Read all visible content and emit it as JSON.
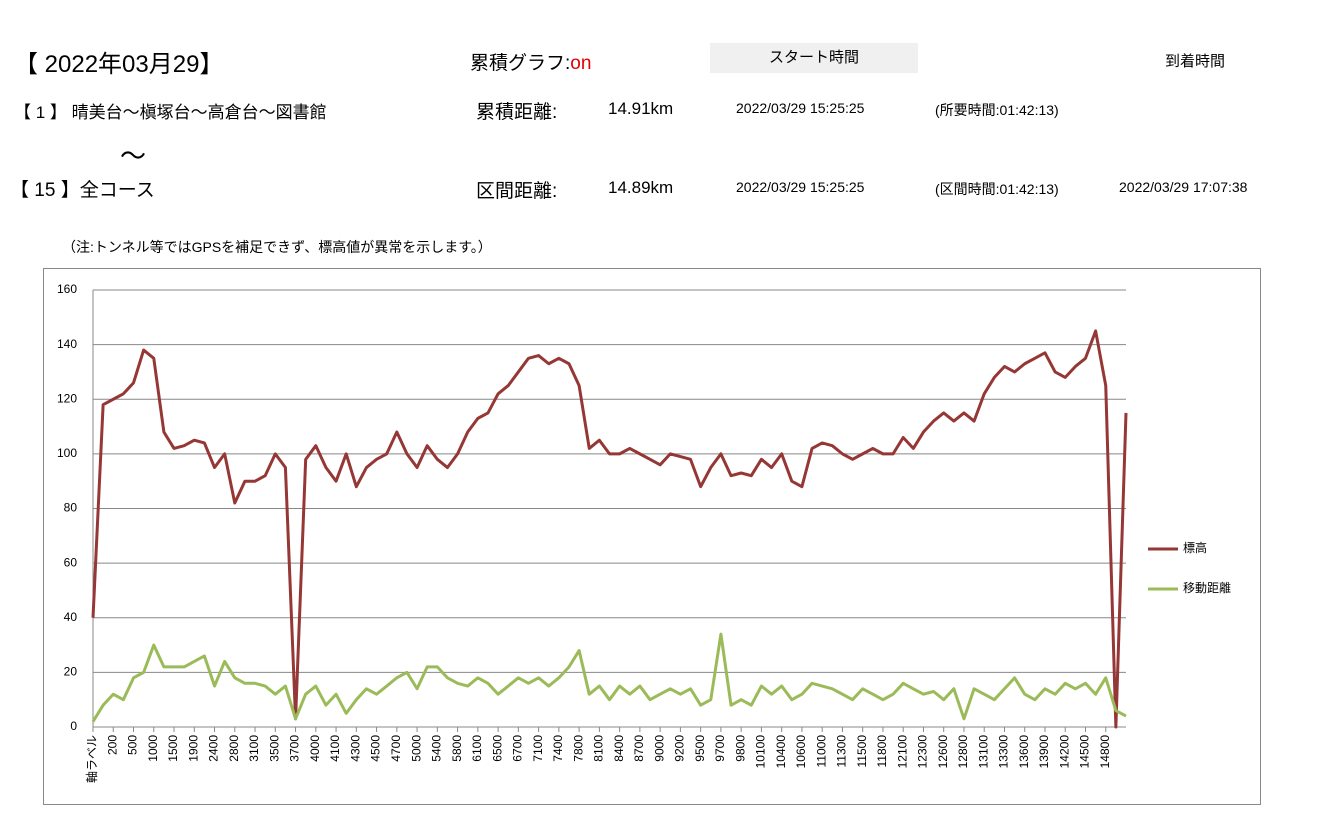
{
  "header": {
    "date": "【 2022年03月29】",
    "graph_label": "累積グラフ:",
    "graph_state": "on",
    "start_label": "スタート時間",
    "end_label": "到着時間"
  },
  "route": {
    "from": "【 1 】 晴美台～槇塚台～高倉台～図書館",
    "tilde": "～",
    "to": "【 15 】全コース"
  },
  "cumulative": {
    "label": "累積距離:",
    "distance": "14.91km",
    "start": "2022/03/29 15:25:25",
    "duration": "(所要時間:01:42:13)"
  },
  "section": {
    "label": "区間距離:",
    "distance": "14.89km",
    "start": "2022/03/29 15:25:25",
    "duration": "(区間時間:01:42:13)",
    "end": "2022/03/29 17:07:38"
  },
  "note": "（注:トンネル等ではGPSを補足できず、標高値が異常を示します。）",
  "chart_data": {
    "type": "line",
    "categories": [
      "軸ラベル",
      null,
      "200",
      null,
      "500",
      null,
      "1000",
      null,
      "1500",
      null,
      "1900",
      null,
      "2400",
      null,
      "2800",
      null,
      "3100",
      null,
      "3500",
      null,
      "3700",
      null,
      "4000",
      null,
      "4100",
      null,
      "4300",
      null,
      "4500",
      null,
      "4700",
      null,
      "5000",
      null,
      "5400",
      null,
      "5800",
      null,
      "6100",
      null,
      "6500",
      null,
      "6700",
      null,
      "7100",
      null,
      "7400",
      null,
      "7800",
      null,
      "8100",
      null,
      "8400",
      null,
      "8700",
      null,
      "9000",
      null,
      "9200",
      null,
      "9500",
      null,
      "9700",
      null,
      "9800",
      null,
      "10100",
      null,
      "10400",
      null,
      "10600",
      null,
      "11000",
      null,
      "11300",
      null,
      "11500",
      null,
      "11800",
      null,
      "12100",
      null,
      "12300",
      null,
      "12600",
      null,
      "12800",
      null,
      "13100",
      null,
      "13300",
      null,
      "13600",
      null,
      "13900",
      null,
      "14200",
      null,
      "14500",
      null,
      "14800",
      null,
      null
    ],
    "series": [
      {
        "name": "標高",
        "color": "#953735",
        "values": [
          40,
          118,
          120,
          122,
          126,
          138,
          135,
          108,
          102,
          103,
          105,
          104,
          95,
          100,
          82,
          90,
          90,
          92,
          100,
          95,
          3,
          98,
          103,
          95,
          90,
          100,
          88,
          95,
          98,
          100,
          108,
          100,
          95,
          103,
          98,
          95,
          100,
          108,
          113,
          115,
          122,
          125,
          130,
          135,
          136,
          133,
          135,
          133,
          125,
          102,
          105,
          100,
          100,
          102,
          100,
          98,
          96,
          100,
          99,
          98,
          88,
          95,
          100,
          92,
          93,
          92,
          98,
          95,
          100,
          90,
          88,
          102,
          104,
          103,
          100,
          98,
          100,
          102,
          100,
          100,
          106,
          102,
          108,
          112,
          115,
          112,
          115,
          112,
          122,
          128,
          132,
          130,
          133,
          135,
          137,
          130,
          128,
          132,
          135,
          145,
          125,
          0,
          115
        ]
      },
      {
        "name": "移動距離",
        "color": "#9bbb59",
        "values": [
          2,
          8,
          12,
          10,
          18,
          20,
          30,
          22,
          22,
          22,
          24,
          26,
          15,
          24,
          18,
          16,
          16,
          15,
          12,
          15,
          3,
          12,
          15,
          8,
          12,
          5,
          10,
          14,
          12,
          15,
          18,
          20,
          14,
          22,
          22,
          18,
          16,
          15,
          18,
          16,
          12,
          15,
          18,
          16,
          18,
          15,
          18,
          22,
          28,
          12,
          15,
          10,
          15,
          12,
          15,
          10,
          12,
          14,
          12,
          14,
          8,
          10,
          34,
          8,
          10,
          8,
          15,
          12,
          15,
          10,
          12,
          16,
          15,
          14,
          12,
          10,
          14,
          12,
          10,
          12,
          16,
          14,
          12,
          13,
          10,
          14,
          3,
          14,
          12,
          10,
          14,
          18,
          12,
          10,
          14,
          12,
          16,
          14,
          16,
          12,
          18,
          6,
          4
        ]
      }
    ],
    "ylim": [
      0,
      160
    ],
    "yticks": [
      0,
      20,
      40,
      60,
      80,
      100,
      120,
      140,
      160
    ],
    "grid": true,
    "legend": "right"
  }
}
